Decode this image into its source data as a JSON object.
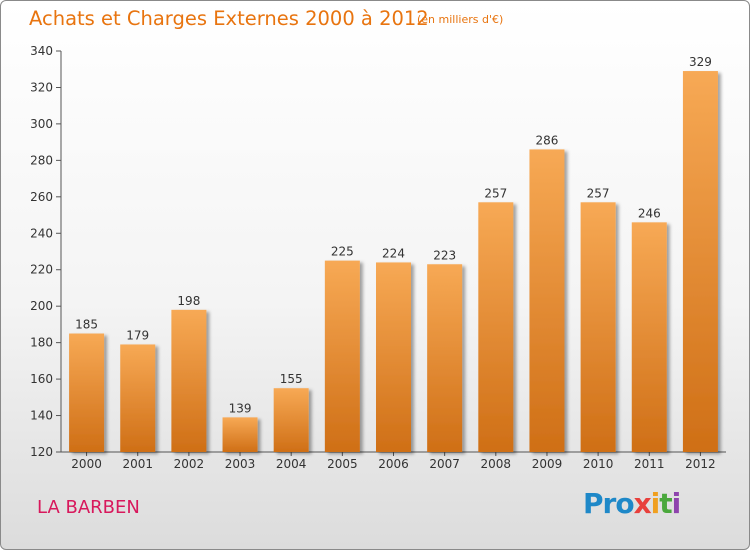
{
  "header": {
    "title": "Achats et Charges Externes 2000 à 2012",
    "unit": "(en milliers d'€)"
  },
  "footer": {
    "city": "LA BARBEN",
    "logo_parts": [
      "Pro",
      "x",
      "i",
      "t",
      "i"
    ]
  },
  "colors": {
    "title": "#e8740f",
    "city": "#d8185c",
    "bar_top": "#f7a955",
    "bar_bottom": "#cf6f16"
  },
  "chart_data": {
    "type": "bar",
    "title": "Achats et Charges Externes 2000 à 2012",
    "subtitle": "(en milliers d'€)",
    "xlabel": "",
    "ylabel": "",
    "categories": [
      "2000",
      "2001",
      "2002",
      "2003",
      "2004",
      "2005",
      "2006",
      "2007",
      "2008",
      "2009",
      "2010",
      "2011",
      "2012"
    ],
    "values": [
      185,
      179,
      198,
      139,
      155,
      225,
      224,
      223,
      257,
      286,
      257,
      246,
      329
    ],
    "ylim": [
      120,
      340
    ],
    "yticks": [
      120,
      140,
      160,
      180,
      200,
      220,
      240,
      260,
      280,
      300,
      320,
      340
    ],
    "grid": false,
    "data_labels": true
  }
}
